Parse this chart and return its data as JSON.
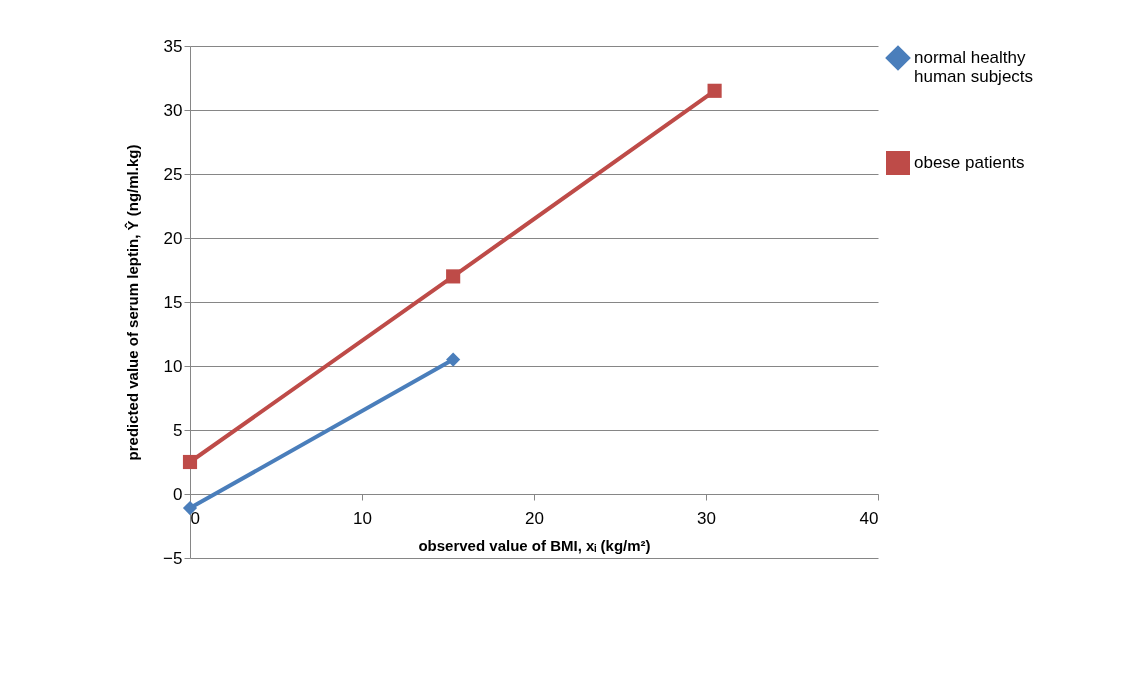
{
  "chart_data": {
    "type": "line",
    "xlabel": "observed value of BMI, xᵢ (kg/m²)",
    "ylabel": "predicted value of serum leptin, Ŷ (ng/ml.kg)",
    "xlim": [
      0,
      40
    ],
    "xticks": [
      0,
      10,
      20,
      30,
      40
    ],
    "ylim": [
      -5,
      35
    ],
    "yticks": [
      -5,
      0,
      5,
      10,
      15,
      20,
      25,
      30,
      35
    ],
    "grid": "y",
    "legend": "right",
    "series": [
      {
        "name": "normal healthy human subjects",
        "color": "#4a7ebb",
        "marker": "diamond",
        "x": [
          0,
          15.3
        ],
        "values": [
          -1.1,
          10.5
        ]
      },
      {
        "name": "obese patients",
        "color": "#be4b48",
        "marker": "square",
        "x": [
          0,
          15.3,
          30.5
        ],
        "values": [
          2.5,
          17.0,
          31.5
        ]
      }
    ]
  }
}
